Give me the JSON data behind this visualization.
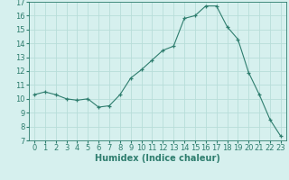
{
  "title": "",
  "xlabel": "Humidex (Indice chaleur)",
  "x": [
    0,
    1,
    2,
    3,
    4,
    5,
    6,
    7,
    8,
    9,
    10,
    11,
    12,
    13,
    14,
    15,
    16,
    17,
    18,
    19,
    20,
    21,
    22,
    23
  ],
  "y": [
    10.3,
    10.5,
    10.3,
    10.0,
    9.9,
    10.0,
    9.4,
    9.5,
    10.3,
    11.5,
    12.1,
    12.8,
    13.5,
    13.8,
    15.8,
    16.0,
    16.7,
    16.7,
    15.2,
    14.3,
    11.9,
    10.3,
    8.5,
    7.3
  ],
  "ylim": [
    7,
    17
  ],
  "xlim_min": -0.5,
  "xlim_max": 23.5,
  "yticks": [
    7,
    8,
    9,
    10,
    11,
    12,
    13,
    14,
    15,
    16,
    17
  ],
  "xticks": [
    0,
    1,
    2,
    3,
    4,
    5,
    6,
    7,
    8,
    9,
    10,
    11,
    12,
    13,
    14,
    15,
    16,
    17,
    18,
    19,
    20,
    21,
    22,
    23
  ],
  "line_color": "#2e7d6e",
  "marker": "+",
  "bg_color": "#d6f0ee",
  "grid_color": "#b8ddd9",
  "label_fontsize": 7,
  "tick_fontsize": 6
}
